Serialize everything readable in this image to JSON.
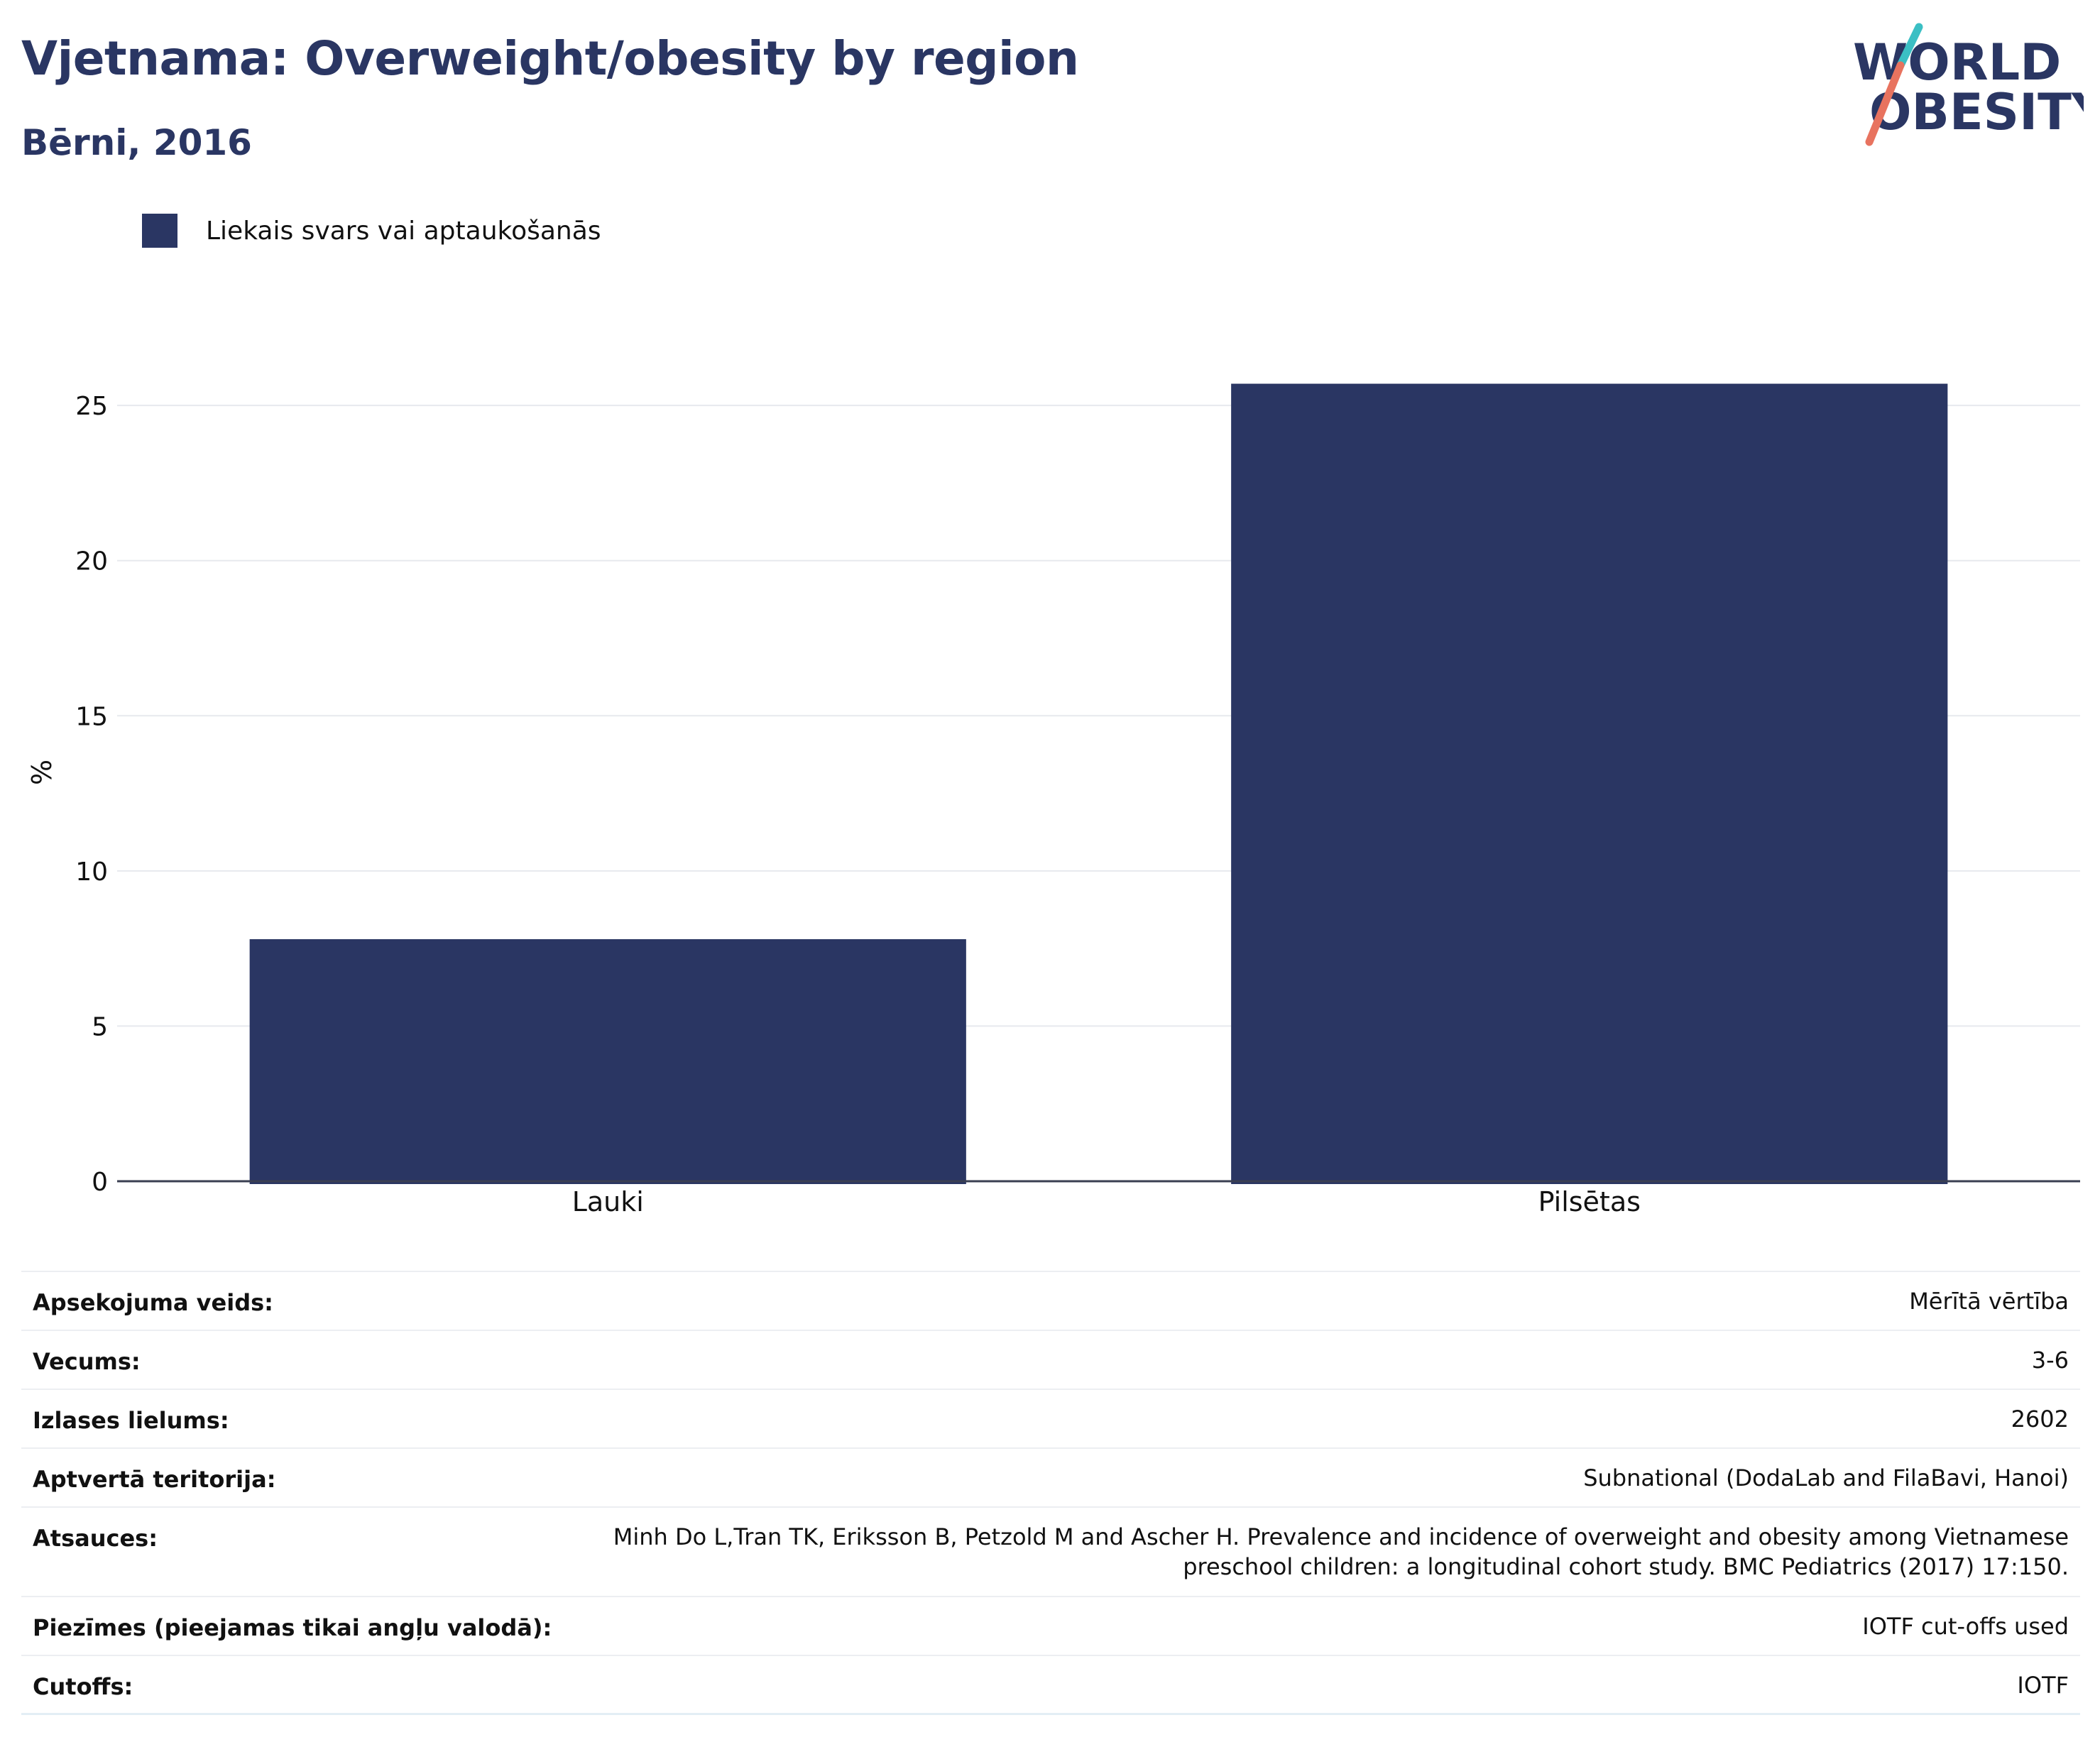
{
  "header": {
    "title": "Vjetnama: Overweight/obesity by region",
    "subtitle": "Bērni, 2016"
  },
  "logo": {
    "line1": "WORLD",
    "line2": "OBESITY"
  },
  "colors": {
    "bar": "#2a3663",
    "logo_teal": "#3bbfc4",
    "logo_coral": "#e8735f"
  },
  "chart_data": {
    "type": "bar",
    "categories": [
      "Lauki",
      "Pilsētas"
    ],
    "series": [
      {
        "name": "Liekais svars vai aptaukošanās",
        "values": [
          7.8,
          25.7
        ]
      }
    ],
    "ylabel": "%",
    "ylim": [
      0,
      28
    ],
    "yticks": [
      0,
      5,
      10,
      15,
      20,
      25
    ],
    "grid": true,
    "legend": "top-left"
  },
  "details": [
    {
      "label": "Apsekojuma veids:",
      "value": "Mērītā vērtība"
    },
    {
      "label": "Vecums:",
      "value": "3-6"
    },
    {
      "label": "Izlases lielums:",
      "value": "2602"
    },
    {
      "label": "Aptvertā teritorija:",
      "value": "Subnational (DodaLab and FilaBavi, Hanoi)"
    },
    {
      "label": "Atsauces:",
      "value": "Minh Do L,Tran TK, Eriksson B, Petzold M and Ascher H. Prevalence and incidence of overweight and obesity among Vietnamese preschool children: a longitudinal cohort study. BMC Pediatrics (2017) 17:150."
    },
    {
      "label": "Piezīmes (pieejamas tikai angļu valodā):",
      "value": "IOTF cut-offs used"
    },
    {
      "label": "Cutoffs:",
      "value": "IOTF"
    }
  ]
}
